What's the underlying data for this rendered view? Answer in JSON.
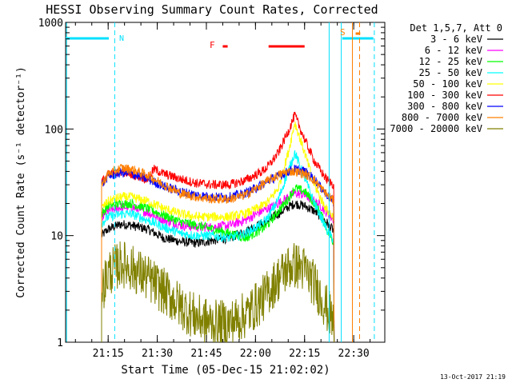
{
  "chart_data": {
    "type": "line",
    "title": "HESSI Observing Summary Count Rates, Corrected",
    "xlabel": "Start Time (05-Dec-15 21:02:02)",
    "ylabel": "Corrected Count Rate (s⁻¹ detector⁻¹)",
    "x_unit": "minutes after 21:02:02",
    "xlim": [
      0,
      97.5
    ],
    "ylim": [
      1,
      1000
    ],
    "yscale": "log",
    "x_ticks": [
      {
        "x": 13,
        "label": "21:15"
      },
      {
        "x": 28,
        "label": "21:30"
      },
      {
        "x": 43,
        "label": "21:45"
      },
      {
        "x": 58,
        "label": "22:00"
      },
      {
        "x": 73,
        "label": "22:15"
      },
      {
        "x": 88,
        "label": "22:30"
      }
    ],
    "y_ticks": [
      {
        "y": 1,
        "label": "1"
      },
      {
        "y": 10,
        "label": "10"
      },
      {
        "y": 100,
        "label": "100"
      },
      {
        "y": 1000,
        "label": "1000"
      }
    ],
    "legend_title": "Det 1,5,7, Att 0",
    "legend_position": "right",
    "series": [
      {
        "name": "3 - 6 keV",
        "color": "#000000",
        "x": [
          11,
          13,
          17,
          20,
          25,
          30,
          35,
          40,
          45,
          50,
          55,
          60,
          62,
          65,
          68,
          70,
          73,
          76,
          78,
          80,
          82
        ],
        "y": [
          10,
          11.5,
          12.8,
          12.5,
          11.5,
          9.5,
          8.8,
          8.5,
          9,
          9.5,
          11,
          13,
          14,
          16,
          18.5,
          20,
          19,
          17,
          15,
          13,
          11
        ]
      },
      {
        "name": "6 - 12 keV",
        "color": "#ff00ff",
        "x": [
          11,
          13,
          17,
          20,
          25,
          30,
          35,
          40,
          45,
          50,
          55,
          60,
          62,
          65,
          68,
          70,
          73,
          76,
          78,
          80,
          82
        ],
        "y": [
          15,
          17,
          18.5,
          18.5,
          16.5,
          14,
          12.5,
          12,
          12,
          12.5,
          14,
          17,
          18,
          20,
          23,
          25,
          24,
          21,
          19,
          16,
          14
        ]
      },
      {
        "name": "12 - 25 keV",
        "color": "#00ff00",
        "x": [
          11,
          13,
          17,
          20,
          25,
          30,
          35,
          40,
          45,
          50,
          55,
          60,
          62,
          65,
          68,
          70,
          73,
          76,
          78,
          80,
          82
        ],
        "y": [
          16,
          19,
          20,
          20,
          18,
          15.5,
          13.5,
          12.5,
          11.5,
          10.5,
          9.5,
          11.5,
          13,
          17,
          22,
          28,
          26,
          20,
          16,
          11,
          8.5
        ]
      },
      {
        "name": "25 - 50 keV",
        "color": "#00ffff",
        "x": [
          11,
          13,
          17,
          20,
          25,
          30,
          35,
          40,
          45,
          50,
          55,
          60,
          62,
          65,
          68,
          70,
          73,
          76,
          78,
          80,
          82
        ],
        "y": [
          13,
          15,
          16,
          16,
          14,
          12,
          10.5,
          10,
          10,
          9.5,
          10.5,
          13,
          15,
          22,
          40,
          60,
          35,
          20,
          15,
          11,
          9
        ]
      },
      {
        "name": "50 - 100 keV",
        "color": "#ffff00",
        "x": [
          11,
          13,
          17,
          20,
          25,
          30,
          35,
          40,
          45,
          50,
          55,
          60,
          62,
          65,
          68,
          70,
          73,
          76,
          78,
          80,
          82
        ],
        "y": [
          18,
          21,
          23,
          23,
          21,
          18,
          16,
          15,
          15,
          15,
          16,
          19,
          21,
          28,
          60,
          115,
          60,
          30,
          22,
          17,
          15
        ]
      },
      {
        "name": "100 - 300 keV",
        "color": "#ff0000",
        "x": [
          11,
          13,
          17,
          20,
          25,
          27,
          30,
          35,
          40,
          45,
          50,
          55,
          60,
          62,
          65,
          68,
          70,
          73,
          76,
          78,
          80,
          82
        ],
        "y": [
          32,
          37,
          40,
          38,
          34,
          42,
          38,
          34,
          31,
          30,
          30,
          33,
          40,
          45,
          60,
          95,
          135,
          80,
          50,
          40,
          33,
          30
        ]
      },
      {
        "name": "300 - 800 keV",
        "color": "#0000ff",
        "x": [
          11,
          13,
          17,
          20,
          25,
          30,
          35,
          40,
          45,
          50,
          55,
          60,
          62,
          65,
          68,
          70,
          73,
          76,
          78,
          80,
          82
        ],
        "y": [
          30,
          36,
          39,
          38,
          34,
          29,
          26,
          24,
          23,
          23,
          25,
          30,
          33,
          36,
          40,
          42,
          40,
          34,
          28,
          24,
          20
        ]
      },
      {
        "name": "800 - 7000 keV",
        "color": "#ff7f00",
        "x": [
          11,
          13,
          17,
          20,
          25,
          30,
          35,
          40,
          45,
          50,
          55,
          60,
          62,
          65,
          68,
          70,
          73,
          76,
          78,
          80,
          82
        ],
        "y": [
          30,
          38,
          43,
          42,
          37,
          30,
          25,
          23,
          22,
          22,
          24,
          30,
          33,
          37,
          40,
          40,
          38,
          33,
          28,
          24,
          21
        ]
      },
      {
        "name": "7000 - 20000 keV",
        "color": "#808000",
        "x": [
          11,
          13,
          17,
          20,
          25,
          30,
          35,
          40,
          45,
          50,
          55,
          60,
          62,
          65,
          68,
          70,
          73,
          76,
          78,
          80,
          82
        ],
        "y": [
          3,
          4.5,
          5.5,
          5,
          4,
          3,
          2.2,
          1.7,
          1.5,
          1.5,
          1.8,
          2.5,
          3,
          4,
          5,
          5.3,
          4.8,
          3.5,
          2.7,
          2,
          1.5
        ]
      }
    ],
    "markers": {
      "night_label": "N",
      "flare_label": "F",
      "saa_label": "S"
    }
  },
  "footer": {
    "timestamp": "13-Oct-2017 21:19"
  }
}
